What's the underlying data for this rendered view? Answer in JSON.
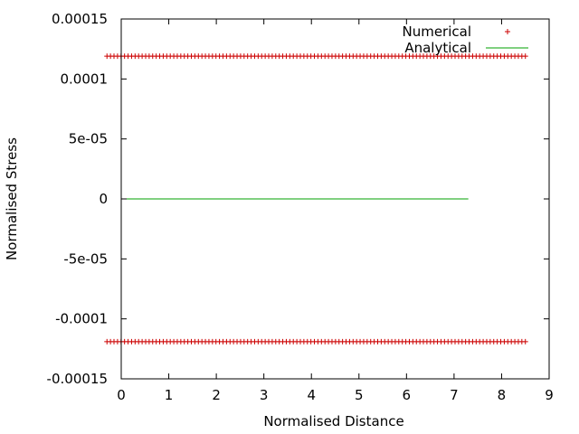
{
  "chart_data": {
    "type": "scatter",
    "title": "",
    "xlabel": "Normalised Distance",
    "ylabel": "Normalised Stress",
    "xlim": [
      0,
      9
    ],
    "ylim": [
      -0.00015,
      0.00015
    ],
    "x_ticks": [
      "0",
      "1",
      "2",
      "3",
      "4",
      "5",
      "6",
      "7",
      "8",
      "9"
    ],
    "x_tick_values": [
      0,
      1,
      2,
      3,
      4,
      5,
      6,
      7,
      8,
      9
    ],
    "y_ticks": [
      "0.00015",
      "0.0001",
      "5e-05",
      "0",
      "-5e-05",
      "-0.0001",
      "-0.00015"
    ],
    "y_tick_values": [
      0.00015,
      0.0001,
      5e-05,
      0,
      -5e-05,
      -0.0001,
      -0.00015
    ],
    "grid": false,
    "legend_position": "top-right",
    "series": [
      {
        "name": "Numerical",
        "kind": "points",
        "marker": "+",
        "color": "#cc0000",
        "groups": [
          {
            "y": 0.000119,
            "x_start": -0.3,
            "x_end": 8.5,
            "count": 120
          },
          {
            "y": -0.000119,
            "x_start": -0.3,
            "x_end": 8.5,
            "count": 120
          }
        ]
      },
      {
        "name": "Analytical",
        "kind": "line",
        "color": "#00a000",
        "points": [
          [
            0,
            0
          ],
          [
            7.3,
            0
          ]
        ]
      }
    ]
  }
}
